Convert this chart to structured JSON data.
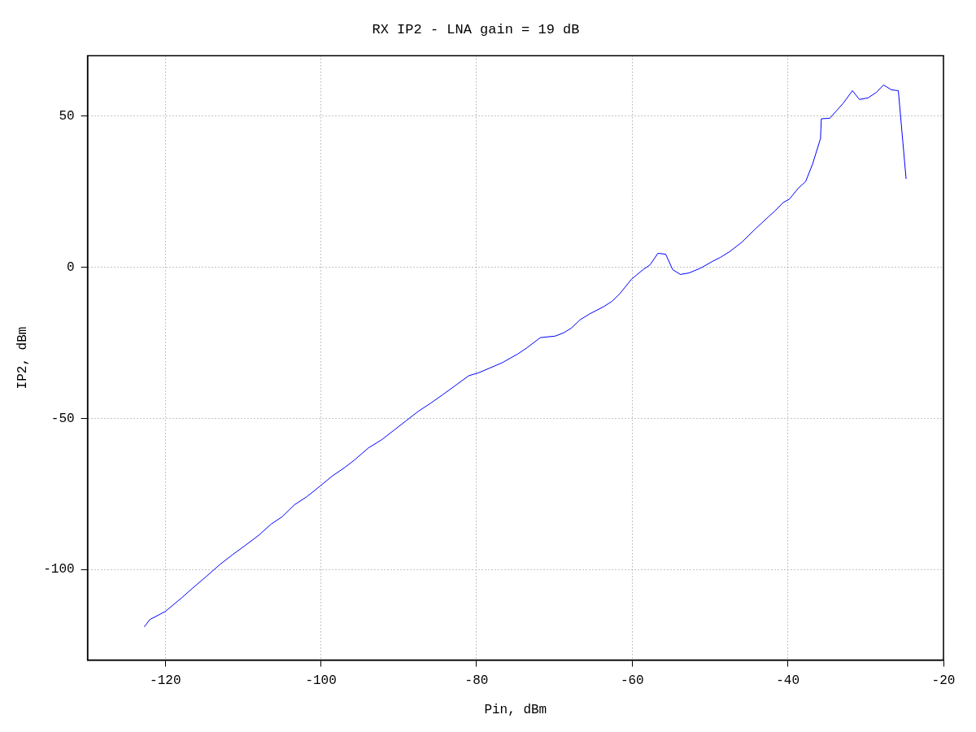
{
  "chart_data": {
    "type": "line",
    "title": "RX IP2 - LNA gain = 19 dB",
    "xlabel": "Pin, dBm",
    "ylabel": "IP2, dBm",
    "xlim": [
      -130,
      -20
    ],
    "xticks": [
      -120,
      -100,
      -80,
      -60,
      -40,
      -20
    ],
    "ylim": [
      -130,
      70
    ],
    "yticks": [
      -100,
      -50,
      0,
      50
    ],
    "grid": true,
    "legend": false,
    "marker": "none",
    "line_style": "solid",
    "series": [
      {
        "color": "#0000ff",
        "x": [
          -122.7,
          -122,
          -120,
          -117.9,
          -116.5,
          -114.9,
          -113,
          -111.4,
          -109.8,
          -108,
          -106.4,
          -105,
          -103.4,
          -101.8,
          -100.1,
          -98.6,
          -96.9,
          -95.7,
          -93.9,
          -92.2,
          -90.6,
          -89,
          -87.5,
          -85.9,
          -84.3,
          -82.7,
          -81,
          -79.7,
          -76.7,
          -74.7,
          -73.6,
          -71.8,
          -69.9,
          -68.8,
          -67.8,
          -66.7,
          -65.5,
          -63.7,
          -62.6,
          -61.6,
          -60.1,
          -58.6,
          -57.7,
          -56.7,
          -55.7,
          -54.8,
          -53.8,
          -52.7,
          -51.2,
          -49.7,
          -48.7,
          -47.5,
          -45.9,
          -44.2,
          -42.4,
          -41.7,
          -40.6,
          -39.8,
          -38.7,
          -37.7,
          -36.8,
          -35.8,
          -35.7,
          -34.6,
          -32.9,
          -31.7,
          -30.8,
          -29.7,
          -28.6,
          -27.7,
          -26.7,
          -25.8,
          -24.8
        ],
        "values": [
          -119,
          -116.6,
          -113.9,
          -109.4,
          -106.2,
          -102.7,
          -98.4,
          -95.2,
          -92.2,
          -88.7,
          -85,
          -82.6,
          -78.6,
          -75.9,
          -72.4,
          -69.2,
          -66.2,
          -63.8,
          -59.8,
          -57.1,
          -53.9,
          -50.7,
          -47.7,
          -45,
          -42.1,
          -39.1,
          -35.9,
          -34.9,
          -31.6,
          -28.7,
          -26.8,
          -23.3,
          -22.8,
          -21.7,
          -20.1,
          -17.4,
          -15.5,
          -13.1,
          -11.3,
          -8.8,
          -4,
          -0.8,
          0.8,
          4.6,
          4.3,
          -0.8,
          -2.4,
          -1.9,
          -0.3,
          1.9,
          3.2,
          5.1,
          8.3,
          12.6,
          16.9,
          18.5,
          21.4,
          22.5,
          26,
          28.4,
          34.3,
          42.6,
          49.1,
          49.3,
          54.2,
          58.4,
          55.5,
          56,
          57.9,
          60.3,
          58.7,
          58.4,
          29.2
        ]
      }
    ]
  }
}
